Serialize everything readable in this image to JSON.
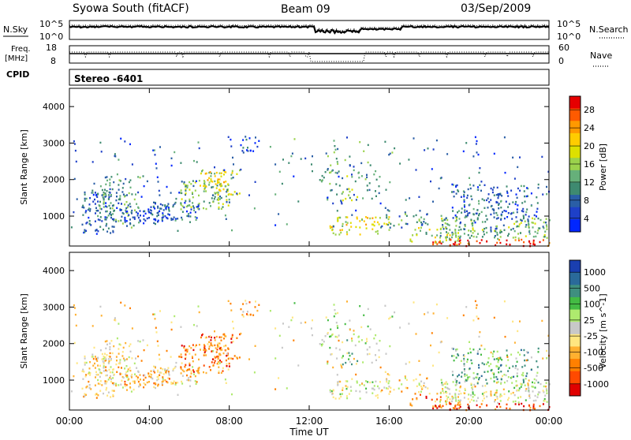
{
  "header": {
    "title": "Syowa South (fitACF)",
    "beam": "Beam 09",
    "date": "03/Sep/2009"
  },
  "panels": {
    "nsky": {
      "left_label": "N.Sky",
      "left_ticks": [
        "10^5",
        "10^0"
      ],
      "right_label": "N.Search",
      "right_ticks": [
        "10^5",
        "10^0"
      ]
    },
    "freq": {
      "left_label_1": "Freq.",
      "left_label_2": "[MHz]",
      "left_ticks": [
        "18",
        "8"
      ],
      "right_label": "Nave",
      "right_ticks": [
        "60",
        "0"
      ]
    },
    "cpid": {
      "label": "CPID",
      "value": "Stereo -6401"
    }
  },
  "chart_data": [
    {
      "type": "heatmap",
      "name": "power",
      "ylabel": "Slant Range [km]",
      "yticks": [
        1000,
        2000,
        3000,
        4000
      ],
      "ylim": [
        180,
        4500
      ],
      "xlim_hours": [
        0,
        24
      ],
      "colorbar": {
        "label": "Power [dB]",
        "ticks": [
          "28",
          "24",
          "20",
          "16",
          "12",
          "8",
          "4"
        ],
        "colors": [
          "#e60000",
          "#ff5a00",
          "#ff9900",
          "#ffcc00",
          "#dde000",
          "#9bd24c",
          "#66b07a",
          "#3e8a70",
          "#2a5ea6",
          "#1e40c8",
          "#0026ff"
        ]
      }
    },
    {
      "type": "heatmap",
      "name": "velocity",
      "ylabel": "Slant Range [km]",
      "yticks": [
        1000,
        2000,
        3000,
        4000
      ],
      "ylim": [
        180,
        4500
      ],
      "xlim_hours": [
        0,
        24
      ],
      "xticks": [
        "00:00",
        "04:00",
        "08:00",
        "12:00",
        "16:00",
        "20:00",
        "00:00"
      ],
      "xlabel": "Time UT",
      "colorbar": {
        "label": "Velocity [m s^-1]",
        "ticks": [
          "1000",
          "500",
          "100",
          "25",
          "-25",
          "-100",
          "-500",
          "-1000"
        ],
        "colors": [
          "#1a3fb0",
          "#2a6a9a",
          "#3f8f7f",
          "#44bb44",
          "#aeea6e",
          "#c8c8c8",
          "#ffe680",
          "#ffb030",
          "#ff8000",
          "#ff4a00",
          "#e00000"
        ]
      }
    }
  ]
}
